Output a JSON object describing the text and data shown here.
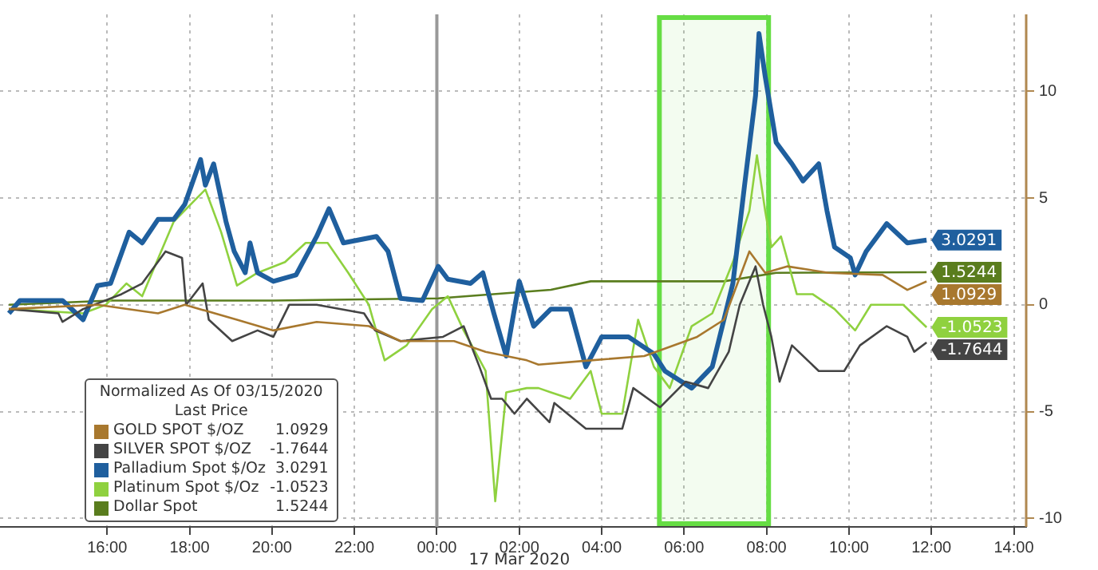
{
  "chart_data": {
    "type": "line",
    "legend_title": "Normalized As Of 03/15/2020\nLast Price",
    "legend": "bottom left",
    "grid": true,
    "marker": "none",
    "line_style": "solid",
    "xlim": [
      "2020-03-16T13:24",
      "2020-03-17T14:18"
    ],
    "xticks": [
      {
        "value": "2020-03-16T16:00",
        "label": "16:00"
      },
      {
        "value": "2020-03-16T18:00",
        "label": "18:00"
      },
      {
        "value": "2020-03-16T20:00",
        "label": "20:00"
      },
      {
        "value": "2020-03-16T22:00",
        "label": "22:00"
      },
      {
        "value": "2020-03-17T00:00",
        "label": "00:00"
      },
      {
        "value": "2020-03-17T02:00",
        "label": "02:00"
      },
      {
        "value": "2020-03-17T04:00",
        "label": "04:00"
      },
      {
        "value": "2020-03-17T06:00",
        "label": "06:00"
      },
      {
        "value": "2020-03-17T08:00",
        "label": "08:00"
      },
      {
        "value": "2020-03-17T10:00",
        "label": "10:00"
      },
      {
        "value": "2020-03-17T12:00",
        "label": "12:00"
      },
      {
        "value": "2020-03-17T14:00",
        "label": "14:00"
      }
    ],
    "ylim": [
      -10.4,
      13.6
    ],
    "yticks": [
      -10,
      -5,
      0,
      5,
      10
    ],
    "ref_lines": [
      {
        "axis": "x",
        "value": "2020-03-17T00:00",
        "color": "#999999"
      }
    ],
    "bands": [
      {
        "axis": "x",
        "from": "2020-03-17T05:24",
        "to": "2020-03-17T08:03",
        "color": "#66dd44"
      }
    ],
    "annotations": [
      "17 Mar 2020"
    ],
    "series": [
      {
        "name": "GOLD SPOT $/OZ",
        "color": "#a8782e",
        "x": [
          "2020-03-16T13:37",
          "2020-03-16T15:46",
          "2020-03-16T17:14",
          "2020-03-16T17:53",
          "2020-03-16T19:09",
          "2020-03-16T20:02",
          "2020-03-16T21:05",
          "2020-03-16T22:21",
          "2020-03-16T23:07",
          "2020-03-17T00:25",
          "2020-03-17T01:11",
          "2020-03-17T02:11",
          "2020-03-17T02:28",
          "2020-03-17T03:44",
          "2020-03-17T05:02",
          "2020-03-17T06:19",
          "2020-03-17T06:58",
          "2020-03-17T07:35",
          "2020-03-17T07:58",
          "2020-03-17T08:30",
          "2020-03-17T09:30",
          "2020-03-17T10:49",
          "2020-03-17T11:25",
          "2020-03-17T11:53"
        ],
        "values": [
          -0.2,
          0,
          -0.4,
          0,
          -0.7,
          -1.2,
          -0.8,
          -1,
          -1.7,
          -1.7,
          -2.2,
          -2.6,
          -2.8,
          -2.6,
          -2.4,
          -1.5,
          -0.7,
          2.5,
          1.5,
          1.8,
          1.5,
          1.4,
          0.7,
          1.0929
        ],
        "value_labels": [
          null,
          null,
          null,
          null,
          null,
          null,
          null,
          null,
          null,
          null,
          null,
          null,
          null,
          null,
          null,
          null,
          null,
          null,
          null,
          null,
          null,
          null,
          null,
          "1.0929"
        ]
      },
      {
        "name": "SILVER SPOT $/OZ",
        "color": "#444444",
        "x": [
          "2020-03-16T13:37",
          "2020-03-16T14:49",
          "2020-03-16T14:55",
          "2020-03-16T15:25",
          "2020-03-16T16:21",
          "2020-03-16T16:51",
          "2020-03-16T17:25",
          "2020-03-16T17:49",
          "2020-03-16T17:55",
          "2020-03-16T18:19",
          "2020-03-16T18:28",
          "2020-03-16T19:02",
          "2020-03-16T19:39",
          "2020-03-16T20:02",
          "2020-03-16T20:25",
          "2020-03-16T21:05",
          "2020-03-16T22:14",
          "2020-03-16T22:30",
          "2020-03-16T23:07",
          "2020-03-17T00:09",
          "2020-03-17T00:39",
          "2020-03-17T01:02",
          "2020-03-17T01:19",
          "2020-03-17T01:35",
          "2020-03-17T01:53",
          "2020-03-17T02:11",
          "2020-03-17T02:44",
          "2020-03-17T02:51",
          "2020-03-17T03:37",
          "2020-03-17T04:30",
          "2020-03-17T04:46",
          "2020-03-17T05:25",
          "2020-03-17T06:02",
          "2020-03-17T06:35",
          "2020-03-17T07:05",
          "2020-03-17T07:21",
          "2020-03-17T07:44",
          "2020-03-17T07:55",
          "2020-03-17T08:07",
          "2020-03-17T08:19",
          "2020-03-17T08:37",
          "2020-03-17T09:16",
          "2020-03-17T09:53",
          "2020-03-17T10:16",
          "2020-03-17T10:55",
          "2020-03-17T11:25",
          "2020-03-17T11:35",
          "2020-03-17T11:53"
        ],
        "values": [
          -0.2,
          -0.4,
          -0.8,
          -0.2,
          0.5,
          1,
          2.5,
          2.2,
          0,
          1,
          -0.7,
          -1.7,
          -1.2,
          -1.5,
          0,
          0,
          -0.4,
          -1.2,
          -1.7,
          -1.5,
          -1,
          -2.9,
          -4.4,
          -4.4,
          -5.1,
          -4.4,
          -5.5,
          -4.6,
          -5.8,
          -5.8,
          -3.9,
          -4.8,
          -3.6,
          -3.9,
          -2.2,
          0,
          1.8,
          0,
          -1.5,
          -3.6,
          -1.9,
          -3.1,
          -3.1,
          -1.9,
          -1,
          -1.5,
          -2.2,
          -1.7644
        ],
        "value_labels": [
          null,
          null,
          null,
          null,
          null,
          null,
          null,
          null,
          null,
          null,
          null,
          null,
          null,
          null,
          null,
          null,
          null,
          null,
          null,
          null,
          null,
          null,
          null,
          null,
          null,
          null,
          null,
          null,
          null,
          null,
          null,
          null,
          null,
          null,
          null,
          null,
          null,
          null,
          null,
          null,
          null,
          null,
          null,
          null,
          null,
          null,
          null,
          "-1.7644"
        ]
      },
      {
        "name": "Palladium Spot $/Oz",
        "color": "#1f5f9e",
        "x": [
          "2020-03-16T13:37",
          "2020-03-16T13:53",
          "2020-03-16T14:55",
          "2020-03-16T15:25",
          "2020-03-16T15:46",
          "2020-03-16T16:05",
          "2020-03-16T16:32",
          "2020-03-16T16:51",
          "2020-03-16T17:14",
          "2020-03-16T17:37",
          "2020-03-16T17:53",
          "2020-03-16T18:16",
          "2020-03-16T18:23",
          "2020-03-16T18:35",
          "2020-03-16T18:53",
          "2020-03-16T19:05",
          "2020-03-16T19:21",
          "2020-03-16T19:28",
          "2020-03-16T19:39",
          "2020-03-16T20:02",
          "2020-03-16T20:35",
          "2020-03-16T21:05",
          "2020-03-16T21:23",
          "2020-03-16T21:44",
          "2020-03-16T22:32",
          "2020-03-16T22:49",
          "2020-03-16T23:07",
          "2020-03-16T23:39",
          "2020-03-17T00:02",
          "2020-03-17T00:16",
          "2020-03-17T00:49",
          "2020-03-17T01:07",
          "2020-03-17T01:23",
          "2020-03-17T01:41",
          "2020-03-17T02:00",
          "2020-03-17T02:21",
          "2020-03-17T02:46",
          "2020-03-17T03:14",
          "2020-03-17T03:37",
          "2020-03-17T04:00",
          "2020-03-17T04:39",
          "2020-03-17T05:16",
          "2020-03-17T05:32",
          "2020-03-17T06:11",
          "2020-03-17T06:41",
          "2020-03-17T07:11",
          "2020-03-17T07:28",
          "2020-03-17T07:44",
          "2020-03-17T07:49",
          "2020-03-17T07:58",
          "2020-03-17T08:14",
          "2020-03-17T08:37",
          "2020-03-17T08:53",
          "2020-03-17T09:16",
          "2020-03-17T09:28",
          "2020-03-17T09:39",
          "2020-03-17T10:02",
          "2020-03-17T10:09",
          "2020-03-17T10:25",
          "2020-03-17T10:55",
          "2020-03-17T11:25",
          "2020-03-17T11:53"
        ],
        "values": [
          -0.4,
          0.2,
          0.2,
          -0.7,
          0.9,
          1,
          3.4,
          2.9,
          4,
          4,
          4.7,
          6.8,
          5.6,
          6.6,
          3.9,
          2.5,
          1.5,
          2.9,
          1.5,
          1.1,
          1.4,
          3.2,
          4.5,
          2.9,
          3.2,
          2.5,
          0.3,
          0.2,
          1.8,
          1.2,
          1,
          1.5,
          -0.4,
          -2.4,
          1.1,
          -1,
          -0.2,
          -0.2,
          -2.9,
          -1.5,
          -1.5,
          -2.3,
          -3.1,
          -3.9,
          -2.9,
          1,
          5.6,
          9.8,
          12.7,
          10.7,
          7.6,
          6.6,
          5.8,
          6.6,
          4.4,
          2.7,
          2.2,
          1.4,
          2.5,
          3.8,
          2.9,
          3.0291
        ],
        "value_labels": [
          null,
          null,
          null,
          null,
          null,
          null,
          null,
          null,
          null,
          null,
          null,
          null,
          null,
          null,
          null,
          null,
          null,
          null,
          null,
          null,
          null,
          null,
          null,
          null,
          null,
          null,
          null,
          null,
          null,
          null,
          null,
          null,
          null,
          null,
          null,
          null,
          null,
          null,
          null,
          null,
          null,
          null,
          null,
          null,
          null,
          null,
          null,
          null,
          null,
          null,
          null,
          null,
          null,
          null,
          null,
          null,
          null,
          null,
          null,
          null,
          null,
          "3.0291"
        ]
      },
      {
        "name": "Platinum Spot $/Oz",
        "color": "#8fd13f",
        "x": [
          "2020-03-16T13:37",
          "2020-03-16T15:25",
          "2020-03-16T15:58",
          "2020-03-16T16:28",
          "2020-03-16T16:51",
          "2020-03-16T17:37",
          "2020-03-16T18:23",
          "2020-03-16T18:46",
          "2020-03-16T19:09",
          "2020-03-16T19:39",
          "2020-03-16T20:19",
          "2020-03-16T20:49",
          "2020-03-16T21:21",
          "2020-03-16T21:51",
          "2020-03-16T22:21",
          "2020-03-16T22:44",
          "2020-03-16T23:16",
          "2020-03-16T23:53",
          "2020-03-17T00:16",
          "2020-03-17T00:39",
          "2020-03-17T01:11",
          "2020-03-17T01:25",
          "2020-03-17T01:41",
          "2020-03-17T02:11",
          "2020-03-17T02:28",
          "2020-03-17T02:46",
          "2020-03-17T03:14",
          "2020-03-17T03:44",
          "2020-03-17T04:00",
          "2020-03-17T04:30",
          "2020-03-17T04:53",
          "2020-03-17T05:16",
          "2020-03-17T05:39",
          "2020-03-17T06:11",
          "2020-03-17T06:41",
          "2020-03-17T07:11",
          "2020-03-17T07:35",
          "2020-03-17T07:46",
          "2020-03-17T07:58",
          "2020-03-17T08:07",
          "2020-03-17T08:21",
          "2020-03-17T08:44",
          "2020-03-17T09:07",
          "2020-03-17T09:39",
          "2020-03-17T10:09",
          "2020-03-17T10:32",
          "2020-03-17T11:19",
          "2020-03-17T11:53"
        ],
        "values": [
          -0.2,
          -0.4,
          0,
          1,
          0.4,
          3.9,
          5.4,
          3.4,
          0.9,
          1.5,
          2,
          2.9,
          2.9,
          1.5,
          0,
          -2.6,
          -1.9,
          -0.2,
          0.4,
          -1.2,
          -3.1,
          -9.2,
          -4.1,
          -3.9,
          -3.9,
          -4.1,
          -4.4,
          -3.1,
          -5.1,
          -5.1,
          -0.7,
          -2.9,
          -3.9,
          -1,
          -0.4,
          2,
          4.4,
          7,
          4.4,
          2.7,
          3.2,
          0.5,
          0.5,
          -0.2,
          -1.2,
          0,
          0,
          -1.0523
        ],
        "value_labels": [
          null,
          null,
          null,
          null,
          null,
          null,
          null,
          null,
          null,
          null,
          null,
          null,
          null,
          null,
          null,
          null,
          null,
          null,
          null,
          null,
          null,
          null,
          null,
          null,
          null,
          null,
          null,
          null,
          null,
          null,
          null,
          null,
          null,
          null,
          null,
          null,
          null,
          null,
          null,
          null,
          null,
          null,
          null,
          null,
          null,
          null,
          null,
          "-1.0523"
        ]
      },
      {
        "name": "Dollar Spot",
        "color": "#5a7d1e",
        "x": [
          "2020-03-16T13:37",
          "2020-03-16T16:05",
          "2020-03-16T20:02",
          "2020-03-17T00:02",
          "2020-03-17T02:46",
          "2020-03-17T03:44",
          "2020-03-17T06:58",
          "2020-03-17T08:14",
          "2020-03-17T11:53"
        ],
        "values": [
          0,
          0.2,
          0.2,
          0.3,
          0.7,
          1.1,
          1.1,
          1.5,
          1.5244
        ],
        "value_labels": [
          null,
          null,
          null,
          null,
          null,
          null,
          null,
          null,
          "1.5244"
        ]
      }
    ]
  }
}
